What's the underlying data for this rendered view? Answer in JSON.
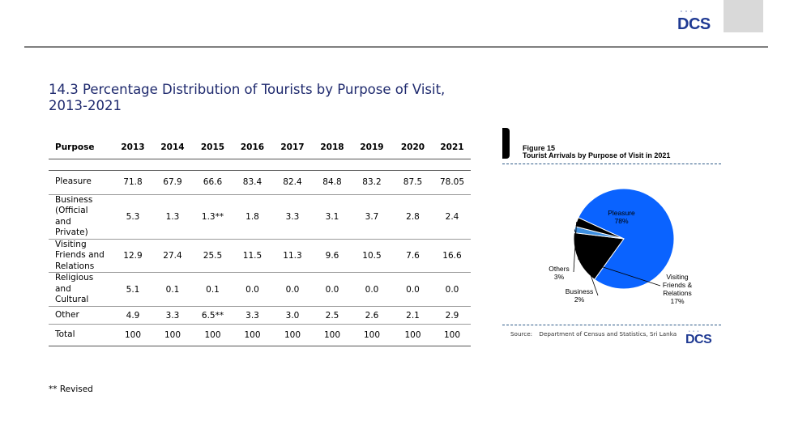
{
  "logo": {
    "dots": "ﾟ ﾟ ﾟ",
    "text": "DCS"
  },
  "title_line1": "14.3  Percentage Distribution of Tourists by Purpose of Visit,",
  "title_line2": "2013-2021",
  "table": {
    "headers": [
      "Purpose",
      "2013",
      "2014",
      "2015",
      "2016",
      "2017",
      "2018",
      "2019",
      "2020",
      "2021"
    ],
    "rows": [
      {
        "label_lines": [
          "Pleasure"
        ],
        "values": [
          "71.8",
          "67.9",
          "66.6",
          "83.4",
          "82.4",
          "84.8",
          "83.2",
          "87.5",
          "78.05"
        ]
      },
      {
        "label_lines": [
          "Business",
          "(Official",
          "and",
          "Private)"
        ],
        "values": [
          "5.3",
          "1.3",
          "1.3**",
          "1.8",
          "3.3",
          "3.1",
          "3.7",
          "2.8",
          "2.4"
        ]
      },
      {
        "label_lines": [
          "Visiting",
          "Friends and",
          "Relations"
        ],
        "values": [
          "12.9",
          "27.4",
          "25.5",
          "11.5",
          "11.3",
          "9.6",
          "10.5",
          "7.6",
          "16.6"
        ]
      },
      {
        "label_lines": [
          "Religious",
          "and",
          "Cultural"
        ],
        "values": [
          "5.1",
          "0.1",
          "0.1",
          "0.0",
          "0.0",
          "0.0",
          "0.0",
          "0.0",
          "0.0"
        ]
      },
      {
        "label_lines": [
          "Other"
        ],
        "values": [
          "4.9",
          "3.3",
          "6.5**",
          "3.3",
          "3.0",
          "2.5",
          "2.6",
          "2.1",
          "2.9"
        ]
      },
      {
        "label_lines": [
          "Total"
        ],
        "values": [
          "100",
          "100",
          "100",
          "100",
          "100",
          "100",
          "100",
          "100",
          "100"
        ]
      }
    ]
  },
  "footnote": "** Revised",
  "figure": {
    "label": "Figure 15",
    "subtitle": "Tourist Arrivals by Purpose of Visit in 2021",
    "source_label": "Source:",
    "source_text": "Department of Census and Statistics, Sri Lanka"
  },
  "chart_data": {
    "type": "pie",
    "title": "Tourist Arrivals by Purpose of Visit in 2021",
    "slices": [
      {
        "label": "Pleasure",
        "value": 78,
        "pct_text": "78%",
        "color": "#0a63ff"
      },
      {
        "label": "Visiting Friends & Relations",
        "value": 17,
        "pct_text": "17%",
        "color": "#000000"
      },
      {
        "label": "Business",
        "value": 2,
        "pct_text": "2%",
        "color": "#3e8fe0"
      },
      {
        "label": "Others",
        "value": 3,
        "pct_text": "3%",
        "color": "#000000"
      }
    ],
    "label_lines": {
      "Pleasure": [
        "Pleasure"
      ],
      "Visiting Friends & Relations": [
        "Visiting",
        "Friends &",
        "Relations"
      ],
      "Business": [
        "Business"
      ],
      "Others": [
        "Others"
      ]
    }
  }
}
